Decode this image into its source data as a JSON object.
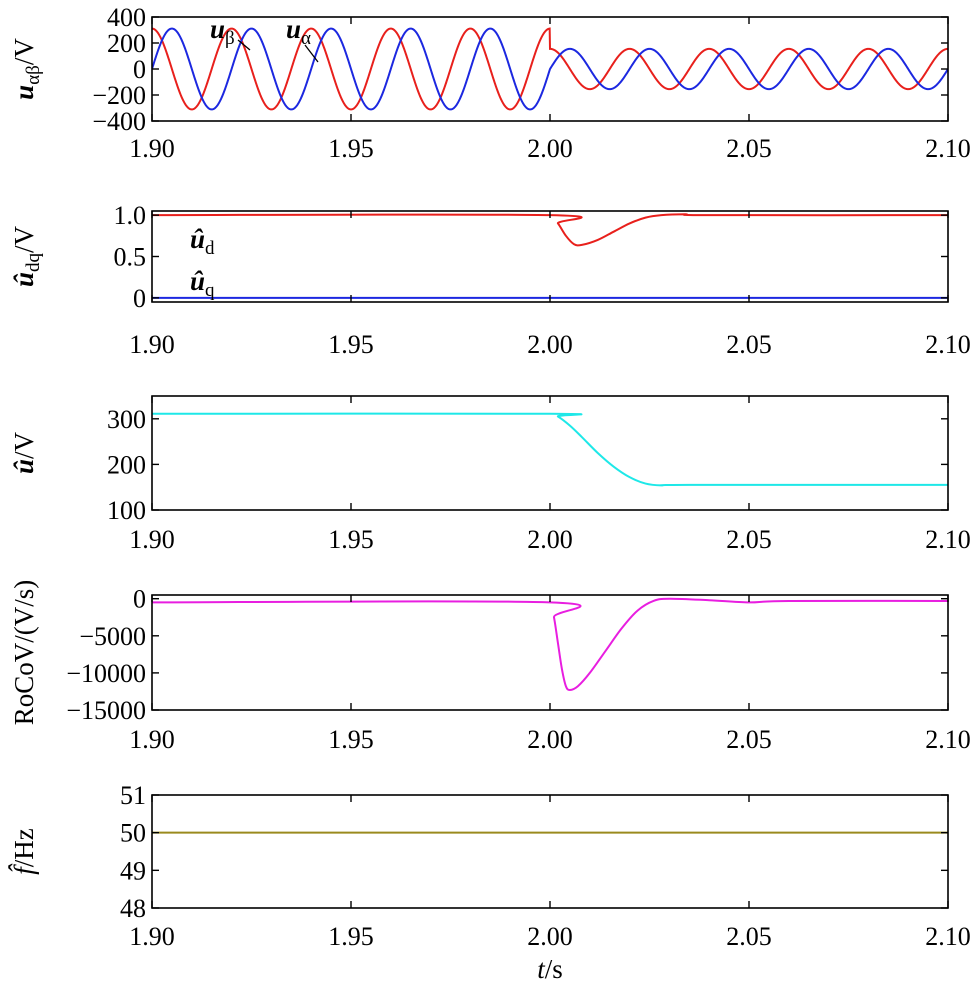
{
  "chart_data": [
    {
      "type": "line",
      "id": "ualpha_beta",
      "ylabel_parts": [
        "u",
        "αβ",
        "/V"
      ],
      "xlim": [
        1.9,
        2.1
      ],
      "ylim": [
        -400,
        400
      ],
      "yticks": [
        400,
        200,
        0,
        -200,
        -400
      ],
      "ytick_labels": [
        "400",
        "200",
        "0",
        "−200",
        "−400"
      ],
      "xticks": [
        1.9,
        1.95,
        2.0,
        2.05,
        2.1
      ],
      "xtick_labels": [
        "1.90",
        "1.95",
        "2.00",
        "2.05",
        "2.10"
      ],
      "series": [
        {
          "name": "u_α",
          "color": "#e8201c",
          "kind": "cos",
          "f": 50,
          "amp_before": 311,
          "amp_after": 155,
          "t_step": 2.0
        },
        {
          "name": "u_β",
          "color": "#1c28e0",
          "kind": "sin",
          "f": 50,
          "amp_before": 311,
          "amp_after": 155,
          "t_step": 2.0
        }
      ],
      "annotations": [
        {
          "sym": "u",
          "sub": "β",
          "series": "u_β"
        },
        {
          "sym": "u",
          "sub": "α",
          "series": "u_α"
        }
      ]
    },
    {
      "type": "line",
      "id": "udq_hat",
      "ylabel_parts": [
        "û",
        "dq",
        "/V"
      ],
      "xlim": [
        1.9,
        2.1
      ],
      "ylim": [
        -0.05,
        1.05
      ],
      "yticks": [
        1.0,
        0.5,
        0
      ],
      "ytick_labels": [
        "1.0",
        "0.5",
        "0"
      ],
      "xticks": [
        1.9,
        1.95,
        2.0,
        2.05,
        2.1
      ],
      "xtick_labels": [
        "1.90",
        "1.95",
        "2.00",
        "2.05",
        "2.10"
      ],
      "series": [
        {
          "name": "û_d",
          "color": "#e8201c",
          "points": [
            [
              1.9,
              1.0
            ],
            [
              2.0,
              1.0
            ],
            [
              2.002,
              0.9
            ],
            [
              2.004,
              0.75
            ],
            [
              2.006,
              0.65
            ],
            [
              2.008,
              0.64
            ],
            [
              2.012,
              0.7
            ],
            [
              2.016,
              0.8
            ],
            [
              2.02,
              0.9
            ],
            [
              2.024,
              0.97
            ],
            [
              2.028,
              1.0
            ],
            [
              2.034,
              1.01
            ],
            [
              2.04,
              1.0
            ],
            [
              2.1,
              1.0
            ]
          ]
        },
        {
          "name": "û_q",
          "color": "#1c28e0",
          "points": [
            [
              1.9,
              0.0
            ],
            [
              2.1,
              0.0
            ]
          ]
        }
      ],
      "annotations": [
        {
          "sym": "û",
          "sub": "d",
          "series": "û_d"
        },
        {
          "sym": "û",
          "sub": "q",
          "series": "û_q"
        }
      ]
    },
    {
      "type": "line",
      "id": "u_hat",
      "ylabel_parts": [
        "û",
        "",
        "/V"
      ],
      "xlim": [
        1.9,
        2.1
      ],
      "ylim": [
        100,
        350
      ],
      "yticks": [
        300,
        200,
        100
      ],
      "ytick_labels": [
        "300",
        "200",
        "100"
      ],
      "xticks": [
        1.9,
        1.95,
        2.0,
        2.05,
        2.1
      ],
      "xtick_labels": [
        "1.90",
        "1.95",
        "2.00",
        "2.05",
        "2.10"
      ],
      "series": [
        {
          "name": "û",
          "color": "#1ee8e8",
          "points": [
            [
              1.9,
              311
            ],
            [
              2.0,
              311
            ],
            [
              2.002,
              305
            ],
            [
              2.005,
              285
            ],
            [
              2.008,
              260
            ],
            [
              2.012,
              225
            ],
            [
              2.016,
              195
            ],
            [
              2.02,
              172
            ],
            [
              2.024,
              158
            ],
            [
              2.028,
              154
            ],
            [
              2.035,
              155
            ],
            [
              2.1,
              155
            ]
          ]
        }
      ]
    },
    {
      "type": "line",
      "id": "rocov",
      "ylabel_parts": [
        "RoCoV/(V/s)",
        "",
        ""
      ],
      "xlim": [
        1.9,
        2.1
      ],
      "ylim": [
        -15000,
        500
      ],
      "yticks": [
        0,
        -5000,
        -10000,
        -15000
      ],
      "ytick_labels": [
        "0",
        "−5000",
        "−10000",
        "−15000"
      ],
      "xticks": [
        1.9,
        1.95,
        2.0,
        2.05,
        2.1
      ],
      "xtick_labels": [
        "1.90",
        "1.95",
        "2.00",
        "2.05",
        "2.10"
      ],
      "series": [
        {
          "name": "RoCoV",
          "color": "#e81ee0",
          "points": [
            [
              1.9,
              -500
            ],
            [
              2.0,
              -500
            ],
            [
              2.001,
              -2500
            ],
            [
              2.002,
              -6000
            ],
            [
              2.003,
              -9500
            ],
            [
              2.004,
              -11800
            ],
            [
              2.005,
              -12300
            ],
            [
              2.007,
              -11800
            ],
            [
              2.01,
              -10000
            ],
            [
              2.014,
              -7000
            ],
            [
              2.018,
              -4000
            ],
            [
              2.022,
              -1600
            ],
            [
              2.026,
              -300
            ],
            [
              2.03,
              0
            ],
            [
              2.04,
              -200
            ],
            [
              2.05,
              -500
            ],
            [
              2.06,
              -300
            ],
            [
              2.1,
              -300
            ]
          ]
        }
      ]
    },
    {
      "type": "line",
      "id": "f_hat",
      "ylabel_parts": [
        "f̂",
        "",
        "/Hz"
      ],
      "xlim": [
        1.9,
        2.1
      ],
      "ylim": [
        48,
        51
      ],
      "yticks": [
        51,
        50,
        49,
        48
      ],
      "ytick_labels": [
        "51",
        "50",
        "49",
        "48"
      ],
      "xticks": [
        1.9,
        1.95,
        2.0,
        2.05,
        2.1
      ],
      "xtick_labels": [
        "1.90",
        "1.95",
        "2.00",
        "2.05",
        "2.10"
      ],
      "xlabel_parts": [
        "t",
        "/s"
      ],
      "series": [
        {
          "name": "f̂",
          "color": "#9a8a1e",
          "points": [
            [
              1.9,
              50
            ],
            [
              2.1,
              50
            ]
          ]
        }
      ]
    }
  ]
}
